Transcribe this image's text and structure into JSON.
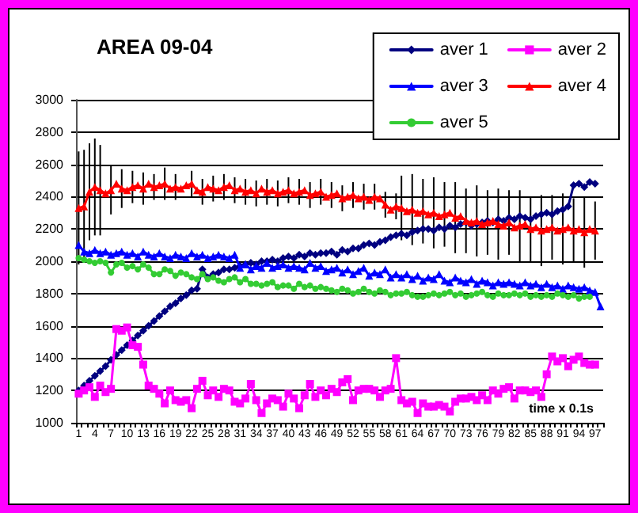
{
  "chart_data": {
    "type": "line",
    "title": "AREA 09-04",
    "xlabel": "time x 0.1s",
    "categories": [
      "1",
      null,
      null,
      "4",
      null,
      null,
      "7",
      null,
      null,
      "10",
      null,
      null,
      "13",
      null,
      null,
      "16",
      null,
      null,
      "19",
      null,
      null,
      "22",
      null,
      null,
      "25",
      null,
      null,
      "28",
      null,
      null,
      "31",
      null,
      null,
      "34",
      null,
      null,
      "37",
      null,
      null,
      "40",
      null,
      null,
      "43",
      null,
      null,
      "46",
      null,
      null,
      "49",
      null,
      null,
      "52",
      null,
      null,
      "55",
      null,
      null,
      "58",
      null,
      null,
      "61",
      null,
      null,
      "64",
      null,
      null,
      "67",
      null,
      null,
      "70",
      null,
      null,
      "73",
      null,
      null,
      "76",
      null,
      null,
      "79",
      null,
      null,
      "82",
      null,
      null,
      "85",
      null,
      null,
      "88",
      null,
      null,
      "91",
      null,
      null,
      "94",
      null,
      null,
      "97",
      null
    ],
    "ylim": [
      1000,
      3000
    ],
    "yticks": [
      1000,
      1200,
      1400,
      1600,
      1800,
      2000,
      2200,
      2400,
      2600,
      2800,
      3000
    ],
    "grid": "y",
    "legend": "top right",
    "series": [
      {
        "name": "aver 1",
        "color": "#000080",
        "marker": "diamond",
        "values": [
          1200,
          1230,
          1260,
          1290,
          1320,
          1350,
          1390,
          1420,
          1450,
          1480,
          1510,
          1540,
          1570,
          1600,
          1630,
          1660,
          1690,
          1720,
          1740,
          1770,
          1790,
          1820,
          1830,
          1950,
          1900,
          1920,
          1930,
          1950,
          1950,
          1960,
          1970,
          1980,
          1990,
          1980,
          2000,
          2000,
          2010,
          2000,
          2020,
          2030,
          2020,
          2040,
          2030,
          2050,
          2040,
          2050,
          2050,
          2060,
          2040,
          2070,
          2060,
          2080,
          2080,
          2100,
          2110,
          2100,
          2120,
          2130,
          2150,
          2160,
          2170,
          2160,
          2180,
          2190,
          2200,
          2200,
          2190,
          2210,
          2200,
          2220,
          2210,
          2230,
          2240,
          2220,
          2230,
          2240,
          2250,
          2240,
          2260,
          2250,
          2270,
          2260,
          2280,
          2270,
          2260,
          2280,
          2290,
          2300,
          2290,
          2310,
          2320,
          2340,
          2470,
          2480,
          2460,
          2490,
          2480,
          null
        ]
      },
      {
        "name": "aver 2",
        "color": "#ff00ff",
        "marker": "square",
        "values": [
          1180,
          1200,
          1220,
          1160,
          1230,
          1190,
          1210,
          1580,
          1570,
          1590,
          1480,
          1470,
          1360,
          1230,
          1210,
          1180,
          1120,
          1200,
          1140,
          1130,
          1140,
          1090,
          1210,
          1260,
          1170,
          1200,
          1160,
          1210,
          1200,
          1130,
          1120,
          1150,
          1240,
          1140,
          1060,
          1120,
          1150,
          1140,
          1100,
          1180,
          1150,
          1090,
          1170,
          1240,
          1160,
          1200,
          1170,
          1210,
          1190,
          1250,
          1270,
          1140,
          1200,
          1210,
          1210,
          1200,
          1160,
          1200,
          1210,
          1400,
          1140,
          1120,
          1130,
          1060,
          1120,
          1100,
          1100,
          1110,
          1100,
          1070,
          1130,
          1150,
          1150,
          1160,
          1140,
          1170,
          1140,
          1200,
          1180,
          1210,
          1220,
          1150,
          1200,
          1200,
          1190,
          1200,
          1160,
          1300,
          1410,
          1380,
          1400,
          1350,
          1390,
          1410,
          1370,
          1360,
          1360,
          null
        ]
      },
      {
        "name": "aver 3",
        "color": "#0000ff",
        "marker": "triangle",
        "values": [
          2100,
          2060,
          2050,
          2070,
          2050,
          2060,
          2040,
          2050,
          2060,
          2040,
          2050,
          2030,
          2060,
          2040,
          2030,
          2050,
          2030,
          2020,
          2040,
          2030,
          2020,
          2050,
          2030,
          2040,
          2020,
          2030,
          2040,
          2030,
          2020,
          2040,
          1960,
          1980,
          1950,
          1970,
          1960,
          1990,
          1960,
          1970,
          1980,
          1960,
          1970,
          1960,
          1950,
          1990,
          1960,
          1970,
          1940,
          1950,
          1960,
          1930,
          1950,
          1920,
          1940,
          1960,
          1910,
          1930,
          1920,
          1950,
          1900,
          1920,
          1900,
          1920,
          1890,
          1910,
          1880,
          1900,
          1890,
          1920,
          1880,
          1870,
          1900,
          1880,
          1870,
          1890,
          1860,
          1880,
          1870,
          1850,
          1870,
          1860,
          1870,
          1860,
          1850,
          1870,
          1850,
          1860,
          1840,
          1860,
          1840,
          1850,
          1830,
          1850,
          1840,
          1830,
          1840,
          1820,
          1810,
          1720
        ]
      },
      {
        "name": "aver 4",
        "color": "#ff0000",
        "marker": "triangle",
        "values": [
          2330,
          2340,
          2430,
          2460,
          2440,
          2420,
          2440,
          2480,
          2450,
          2440,
          2460,
          2470,
          2450,
          2480,
          2460,
          2470,
          2480,
          2450,
          2460,
          2450,
          2470,
          2480,
          2440,
          2430,
          2460,
          2450,
          2440,
          2460,
          2470,
          2440,
          2450,
          2430,
          2440,
          2420,
          2450,
          2430,
          2440,
          2420,
          2430,
          2440,
          2420,
          2430,
          2440,
          2410,
          2420,
          2430,
          2400,
          2410,
          2420,
          2390,
          2400,
          2410,
          2390,
          2400,
          2380,
          2400,
          2390,
          2350,
          2320,
          2340,
          2330,
          2310,
          2320,
          2300,
          2310,
          2290,
          2300,
          2280,
          2290,
          2300,
          2270,
          2280,
          2250,
          2240,
          2250,
          2230,
          2240,
          2250,
          2230,
          2220,
          2240,
          2210,
          2220,
          2230,
          2200,
          2210,
          2190,
          2200,
          2210,
          2190,
          2200,
          2210,
          2190,
          2200,
          2180,
          2200,
          2190,
          null
        ],
        "errors": [
          350,
          350,
          300,
          300,
          280,
          null,
          150,
          null,
          120,
          null,
          100,
          null,
          100,
          null,
          80,
          null,
          100,
          null,
          80,
          null,
          null,
          80,
          null,
          80,
          null,
          80,
          null,
          80,
          null,
          80,
          null,
          80,
          null,
          80,
          null,
          80,
          null,
          80,
          null,
          80,
          null,
          80,
          null,
          80,
          null,
          80,
          null,
          80,
          null,
          80,
          null,
          80,
          null,
          80,
          null,
          80,
          null,
          80,
          null,
          80,
          200,
          null,
          220,
          null,
          200,
          null,
          220,
          null,
          200,
          null,
          220,
          null,
          200,
          null,
          220,
          null,
          200,
          null,
          220,
          null,
          200,
          null,
          220,
          null,
          200,
          null,
          220,
          null,
          200,
          null,
          220,
          null,
          200,
          null,
          220,
          null,
          180,
          null
        ]
      },
      {
        "name": "aver 5",
        "color": "#33cc33",
        "marker": "circle",
        "values": [
          2020,
          2010,
          2000,
          1990,
          2000,
          1990,
          1930,
          1980,
          1990,
          1960,
          1970,
          1950,
          1980,
          1960,
          1920,
          1920,
          1950,
          1940,
          1910,
          1930,
          1920,
          1900,
          1890,
          1920,
          1890,
          1900,
          1880,
          1870,
          1890,
          1900,
          1870,
          1890,
          1860,
          1860,
          1850,
          1860,
          1870,
          1840,
          1850,
          1850,
          1830,
          1860,
          1840,
          1850,
          1830,
          1840,
          1830,
          1820,
          1810,
          1830,
          1820,
          1800,
          1810,
          1830,
          1810,
          1800,
          1820,
          1810,
          1790,
          1800,
          1800,
          1810,
          1790,
          1780,
          1780,
          1790,
          1800,
          1790,
          1800,
          1810,
          1790,
          1800,
          1780,
          1790,
          1800,
          1810,
          1790,
          1780,
          1800,
          1790,
          1790,
          1800,
          1790,
          1800,
          1780,
          1790,
          1780,
          1790,
          1780,
          1800,
          1790,
          1780,
          1790,
          1770,
          1780,
          1780,
          null,
          null
        ]
      }
    ]
  }
}
